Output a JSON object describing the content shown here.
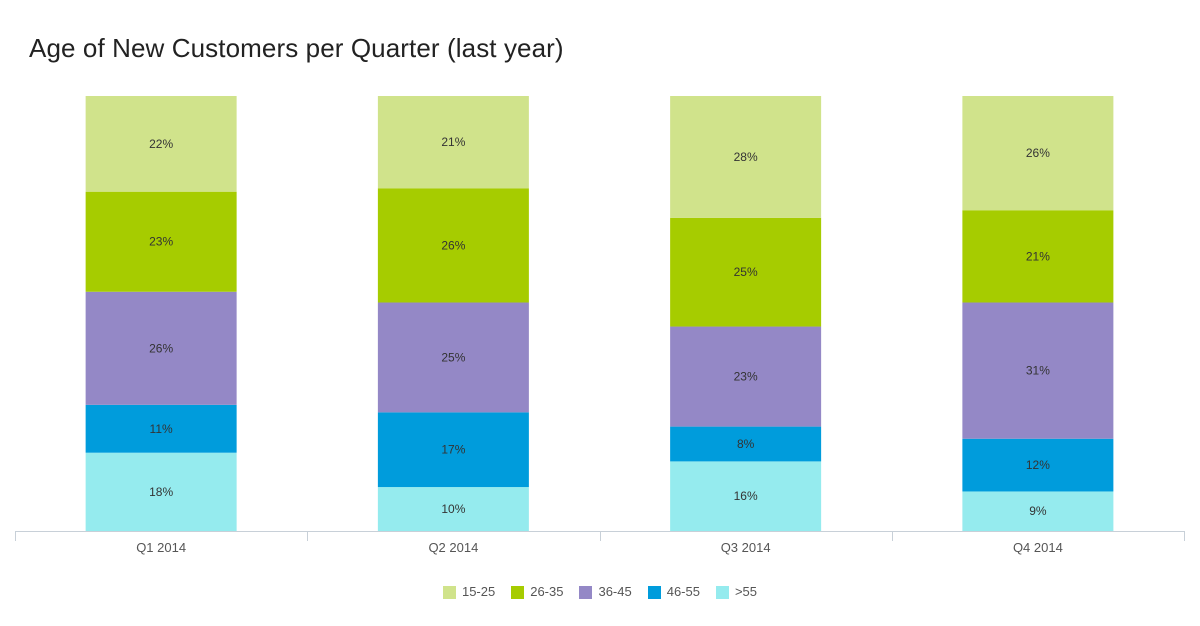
{
  "chart_data": {
    "type": "bar",
    "stacked": true,
    "orientation": "vertical",
    "normalized_percent": true,
    "title": "Age of New Customers per Quarter (last year)",
    "xlabel": "",
    "ylabel": "",
    "categories": [
      "Q1 2014",
      "Q2 2014",
      "Q3 2014",
      "Q4 2014"
    ],
    "ylim": [
      0,
      100
    ],
    "grid": false,
    "legend_position": "bottom",
    "series": [
      {
        "name": ">55",
        "color": "#95ebee",
        "values": [
          18,
          10,
          16,
          9
        ],
        "labels": [
          "18%",
          "10%",
          "16%",
          "9%"
        ]
      },
      {
        "name": "46-55",
        "color": "#009cdc",
        "values": [
          11,
          17,
          8,
          12
        ],
        "labels": [
          "11%",
          "17%",
          "8%",
          "12%"
        ]
      },
      {
        "name": "36-45",
        "color": "#9488c6",
        "values": [
          26,
          25,
          23,
          31
        ],
        "labels": [
          "26%",
          "25%",
          "23%",
          "31%"
        ]
      },
      {
        "name": "26-35",
        "color": "#a6cc00",
        "values": [
          23,
          26,
          25,
          21
        ],
        "labels": [
          "23%",
          "26%",
          "25%",
          "21%"
        ]
      },
      {
        "name": "15-25",
        "color": "#d0e38b",
        "values": [
          22,
          21,
          28,
          26
        ],
        "labels": [
          "22%",
          "21%",
          "28%",
          "26%"
        ]
      }
    ],
    "legend_order": [
      "15-25",
      "26-35",
      "36-45",
      "46-55",
      ">55"
    ]
  }
}
